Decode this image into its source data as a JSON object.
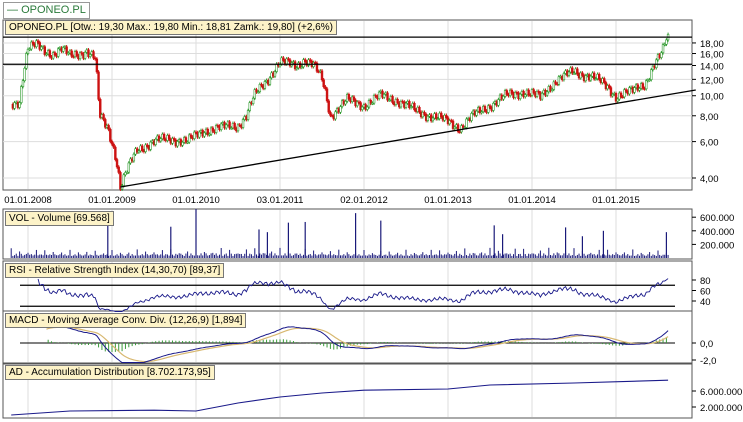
{
  "legend": {
    "label": "OPONEO.PL",
    "color": "#2a7a3a"
  },
  "chart_data": [
    {
      "type": "candlestick",
      "title": "OPONEO.PL [Otw.: 19,30  Max.: 19,80  Min.: 18,81  Zamk.: 19,80] (+2,6%)",
      "scale": "log",
      "y_ticks": [
        "4,00",
        "6,00",
        "8,00",
        "10,00",
        "12,00",
        "14,00",
        "16,00",
        "18,00"
      ],
      "y_tick_values": [
        4,
        6,
        8,
        10,
        12,
        14,
        16,
        18
      ],
      "x_ticks": [
        "01.01.2008",
        "01.01.2009",
        "01.01.2010",
        "03.01.2011",
        "02.01.2012",
        "01.01.2013",
        "01.01.2014",
        "01.01.2015"
      ],
      "x_tick_values": [
        2008,
        2009,
        2010,
        2011,
        2012,
        2013,
        2014,
        2015
      ],
      "close_approx": {
        "t": [
          2007.8,
          2007.9,
          2008.0,
          2008.1,
          2008.2,
          2008.3,
          2008.4,
          2008.5,
          2008.6,
          2008.7,
          2008.8,
          2008.85,
          2008.95,
          2009.05,
          2009.1,
          2009.2,
          2009.3,
          2009.5,
          2009.7,
          2009.9,
          2010.1,
          2010.3,
          2010.5,
          2010.6,
          2010.7,
          2010.85,
          2011.0,
          2011.2,
          2011.3,
          2011.4,
          2011.5,
          2011.6,
          2011.8,
          2012.0,
          2012.2,
          2012.4,
          2012.6,
          2012.8,
          2013.0,
          2013.15,
          2013.3,
          2013.5,
          2013.7,
          2013.9,
          2014.1,
          2014.3,
          2014.5,
          2014.7,
          2014.9,
          2015.0,
          2015.2,
          2015.35,
          2015.45,
          2015.55,
          2015.62
        ],
        "price": [
          9.0,
          9.5,
          17,
          17.5,
          16.5,
          16,
          16.8,
          15.5,
          16,
          16.5,
          15,
          8,
          7,
          5,
          3.6,
          4.5,
          5.5,
          6,
          6.2,
          6,
          6.8,
          7,
          7.2,
          8,
          10,
          12,
          14.5,
          14,
          15,
          14,
          12,
          8,
          9.5,
          9,
          10,
          9.5,
          8.5,
          8,
          7.5,
          7,
          8,
          9,
          10,
          10.5,
          9.8,
          12,
          13,
          12.5,
          11,
          10,
          10.5,
          11.5,
          14,
          16,
          19.8
        ]
      },
      "hlines": [
        19.2,
        14.2
      ],
      "trendline": [
        [
          2009.1,
          3.62
        ],
        [
          2015.95,
          10.66
        ]
      ],
      "colors": {
        "up": "#2e9a2e",
        "down": "#cc1111"
      }
    },
    {
      "type": "bar",
      "title": "VOL - Volume [69.568]",
      "y_ticks": [
        "600.000",
        "400.000",
        "200.000"
      ],
      "y_tick_values": [
        600000,
        400000,
        200000
      ],
      "spikes": {
        "t": [
          2008.95,
          2009.7,
          2010.0,
          2010.75,
          2010.85,
          2011.1,
          2011.3,
          2011.9,
          2012.2,
          2013.55,
          2013.65,
          2014.4,
          2014.6,
          2014.85,
          2015.6
        ],
        "value": [
          520000,
          460000,
          720000,
          420000,
          380000,
          520000,
          530000,
          660000,
          550000,
          480000,
          350000,
          450000,
          320000,
          400000,
          380000
        ]
      },
      "color": "#1a1a7a"
    },
    {
      "type": "line",
      "title": "RSI - Relative Strength Index (14,30,70) [89,37]",
      "y_ticks": [
        "80",
        "60",
        "40"
      ],
      "y_tick_values": [
        80,
        60,
        40
      ],
      "levels": [
        70,
        30
      ]
    },
    {
      "type": "line",
      "title": "MACD - Moving Average Conv. Div. (12,26,9) [1,894]",
      "y_ticks": [
        "0,0",
        "-2,0"
      ],
      "y_tick_values": [
        0,
        -2
      ]
    },
    {
      "type": "line",
      "title": "AD - Accumulation Distribution [8.702.173,95]",
      "y_ticks": [
        "6.000.000",
        "2.000.000"
      ],
      "y_tick_values": [
        6000000,
        2000000
      ],
      "t": [
        2007.8,
        2008.5,
        2009.5,
        2010.0,
        2010.5,
        2011.0,
        2011.5,
        2012.0,
        2013.0,
        2013.5,
        2014.5,
        2015.62
      ],
      "value": [
        0,
        1000000,
        1200000,
        1000000,
        3000000,
        4500000,
        5500000,
        6200000,
        6500000,
        7500000,
        8000000,
        8700000
      ]
    }
  ]
}
